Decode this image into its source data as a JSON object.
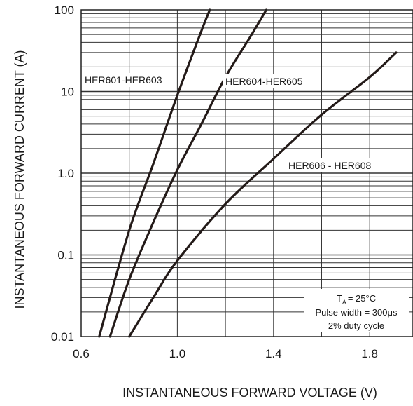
{
  "chart_data": {
    "type": "line",
    "title": "",
    "xlabel": "INSTANTANEOUS FORWARD VOLTAGE (V)",
    "ylabel": "INSTANTANEOUS FORWARD CURRENT (A)",
    "x_scale": "linear",
    "y_scale": "log",
    "xlim": [
      0.6,
      1.98
    ],
    "ylim": [
      0.01,
      100
    ],
    "xticks": [
      0.6,
      1.0,
      1.4,
      1.8
    ],
    "xtick_labels": [
      "0.6",
      "1.0",
      "1.4",
      "1.8"
    ],
    "yticks": [
      0.01,
      0.1,
      1,
      10,
      100
    ],
    "ytick_labels": [
      "0.01",
      "0.1",
      "1.0",
      "10",
      "100"
    ],
    "grid": true,
    "line_color": "#231a18",
    "series": [
      {
        "name": "HER601-HER603",
        "x": [
          0.675,
          0.8,
          0.9,
          1.0,
          1.1,
          1.135
        ],
        "y": [
          0.01,
          0.2,
          1.3,
          9,
          55,
          100
        ]
      },
      {
        "name": "HER604-HER605",
        "x": [
          0.72,
          0.8,
          0.9,
          1.0,
          1.1,
          1.2,
          1.3,
          1.37
        ],
        "y": [
          0.01,
          0.05,
          0.25,
          1.1,
          4,
          15,
          45,
          100
        ]
      },
      {
        "name": "HER606 - HER608",
        "x": [
          0.8,
          0.9,
          1.0,
          1.2,
          1.4,
          1.6,
          1.8,
          1.91
        ],
        "y": [
          0.01,
          0.03,
          0.085,
          0.42,
          1.5,
          5.2,
          15,
          30
        ]
      }
    ],
    "annotations": {
      "temperature_prefix": "T",
      "temperature_subscript": "A",
      "temperature_value": "= 25°C",
      "pulse_width": "Pulse width = 300μs",
      "duty_cycle": "2% duty cycle"
    }
  }
}
